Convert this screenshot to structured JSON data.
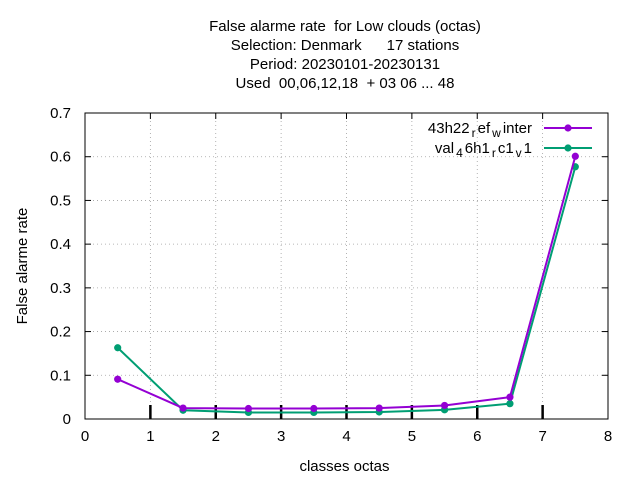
{
  "chart_data": {
    "type": "line",
    "title_lines": [
      "False alarme rate  for Low clouds (octas)",
      "Selection: Denmark      17 stations",
      "Period: 20230101-20230131",
      "Used  00,06,12,18  + 03 06 ... 48"
    ],
    "xlabel": "classes octas",
    "ylabel": "False alarme rate",
    "xlim": [
      0,
      8
    ],
    "ylim": [
      0,
      0.7
    ],
    "x_ticks": [
      "0",
      "1",
      "2",
      "3",
      "4",
      "5",
      "6",
      "7",
      "8"
    ],
    "y_ticks": [
      "0",
      "0.1",
      "0.2",
      "0.3",
      "0.4",
      "0.5",
      "0.6",
      "0.7"
    ],
    "grid": true,
    "legend_position": "top-right",
    "x": [
      0.5,
      1.5,
      2.5,
      3.5,
      4.5,
      5.5,
      6.5,
      7.5
    ],
    "series": [
      {
        "name": "43h22_ref_winter",
        "legend_parts": [
          "43h22",
          "r",
          "ef",
          "w",
          "inter"
        ],
        "color": "#9400d3",
        "values": [
          0.091,
          0.025,
          0.024,
          0.024,
          0.025,
          0.031,
          0.05,
          0.601
        ]
      },
      {
        "name": "val_46h1_rc1_v1",
        "legend_parts": [
          "val",
          "4",
          "6h1",
          "r",
          "c1",
          "v",
          "1"
        ],
        "color": "#009e73",
        "values": [
          0.163,
          0.02,
          0.015,
          0.015,
          0.016,
          0.021,
          0.035,
          0.577
        ]
      }
    ]
  }
}
